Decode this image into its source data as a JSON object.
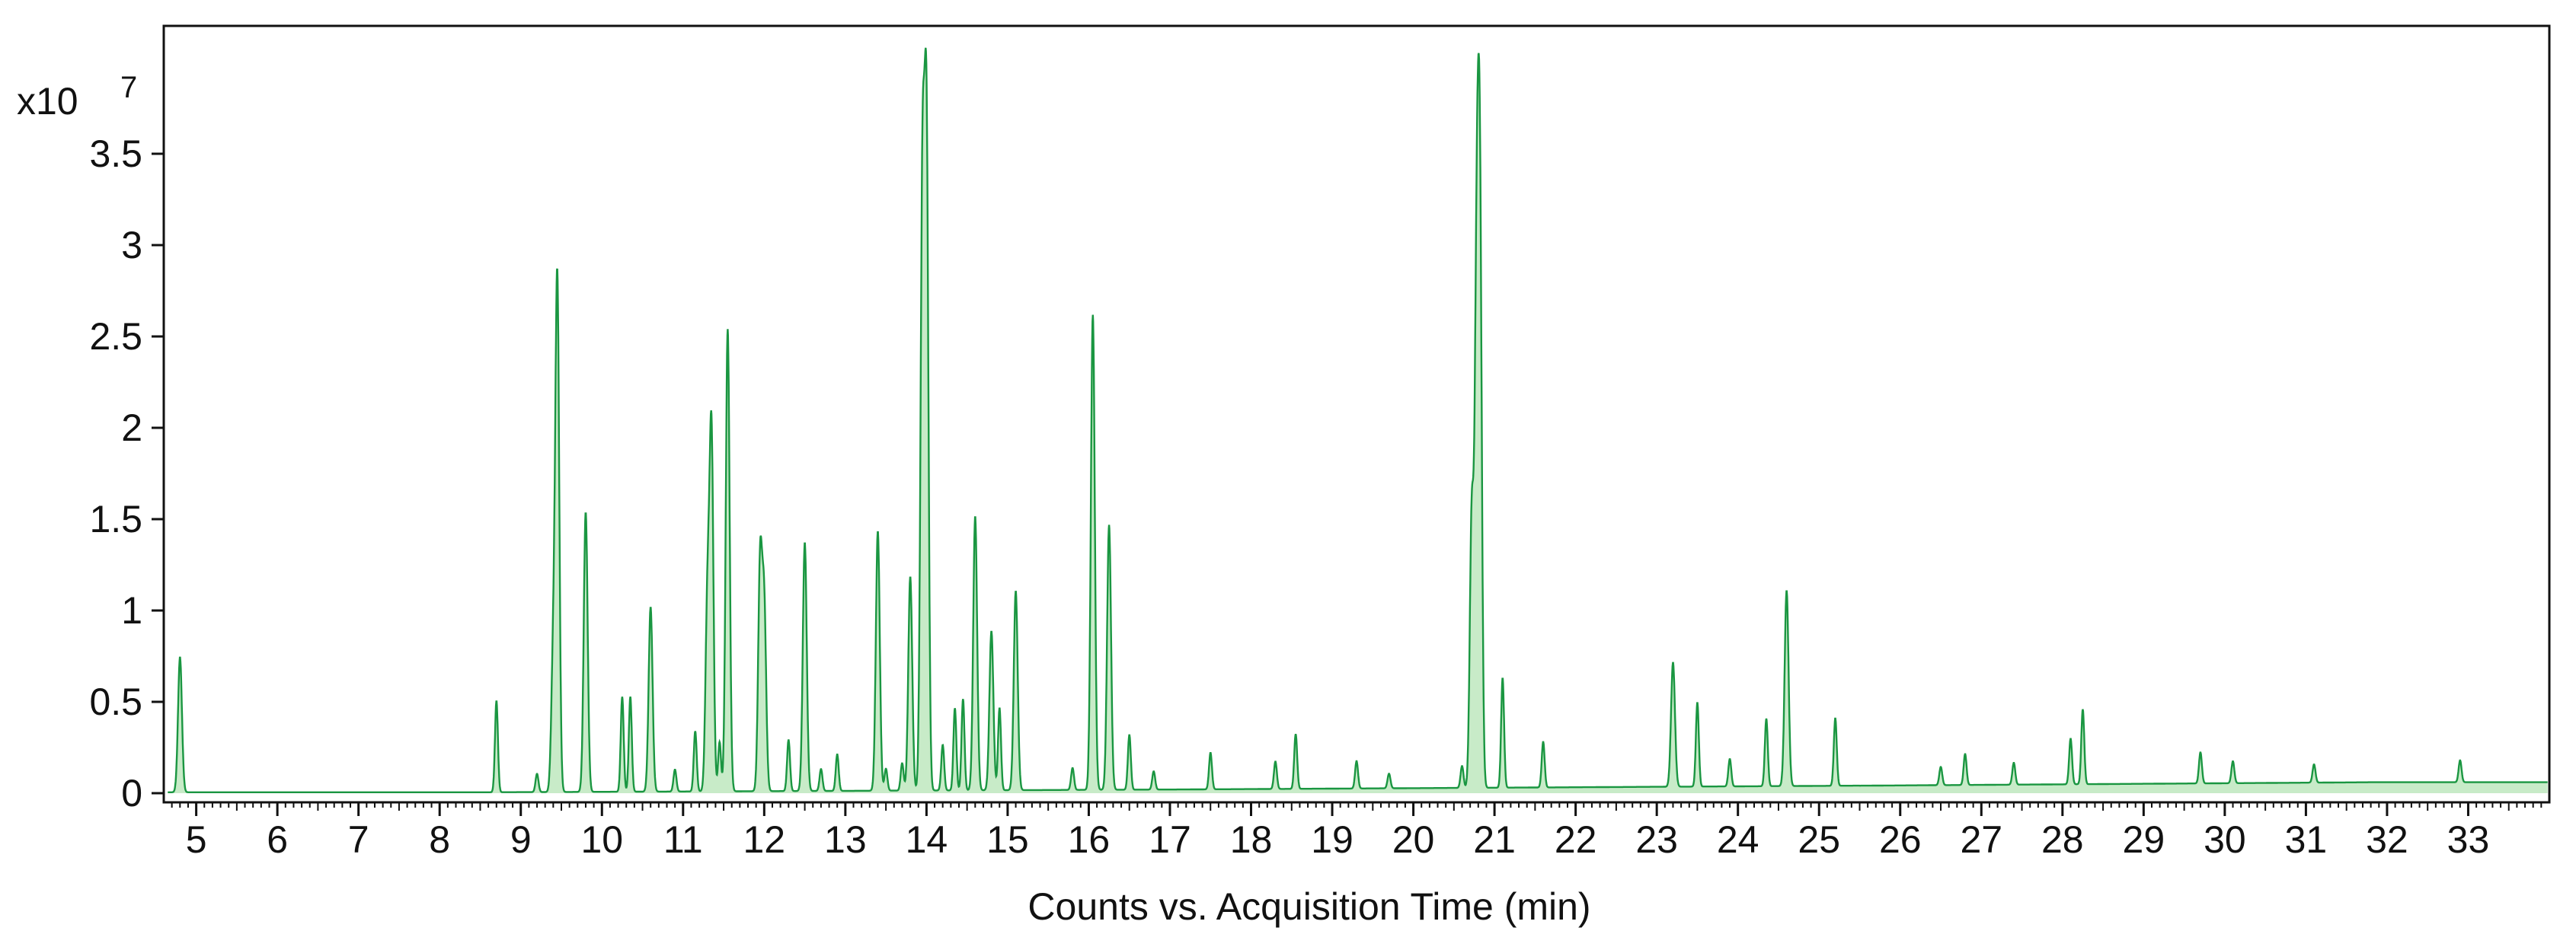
{
  "chart_data": {
    "type": "line",
    "title": "",
    "xlabel": "Counts vs. Acquisition Time (min)",
    "ylabel": "",
    "y_scale_base": "x10",
    "y_scale_exponent": "7",
    "xlim": [
      4.6,
      34.0
    ],
    "ylim": [
      -0.05,
      4.2
    ],
    "x_ticks": [
      5,
      6,
      7,
      8,
      9,
      10,
      11,
      12,
      13,
      14,
      15,
      16,
      17,
      18,
      19,
      20,
      21,
      22,
      23,
      24,
      25,
      26,
      27,
      28,
      29,
      30,
      31,
      32,
      33
    ],
    "y_ticks": [
      0,
      0.5,
      1,
      1.5,
      2,
      2.5,
      3,
      3.5
    ],
    "y_tick_labels": [
      "0",
      "0.5",
      "1",
      "1.5",
      "2",
      "2.5",
      "3",
      "3.5"
    ],
    "grid": false,
    "line_color": "#1a9641",
    "fill_color": "#c8ebc8",
    "peaks": [
      {
        "x": 4.8,
        "y": 0.74
      },
      {
        "x": 8.7,
        "y": 0.5
      },
      {
        "x": 9.2,
        "y": 0.1
      },
      {
        "x": 9.4,
        "y": 0.74
      },
      {
        "x": 9.45,
        "y": 2.78
      },
      {
        "x": 9.8,
        "y": 1.53
      },
      {
        "x": 10.25,
        "y": 0.52
      },
      {
        "x": 10.35,
        "y": 0.52
      },
      {
        "x": 10.6,
        "y": 1.01
      },
      {
        "x": 10.9,
        "y": 0.12
      },
      {
        "x": 11.15,
        "y": 0.33
      },
      {
        "x": 11.3,
        "y": 1.02
      },
      {
        "x": 11.35,
        "y": 1.95
      },
      {
        "x": 11.45,
        "y": 0.27
      },
      {
        "x": 11.55,
        "y": 2.53
      },
      {
        "x": 11.95,
        "y": 1.25
      },
      {
        "x": 12.0,
        "y": 1.0
      },
      {
        "x": 12.3,
        "y": 0.28
      },
      {
        "x": 12.5,
        "y": 1.36
      },
      {
        "x": 12.7,
        "y": 0.12
      },
      {
        "x": 12.9,
        "y": 0.2
      },
      {
        "x": 13.4,
        "y": 1.42
      },
      {
        "x": 13.5,
        "y": 0.12
      },
      {
        "x": 13.7,
        "y": 0.15
      },
      {
        "x": 13.8,
        "y": 1.17
      },
      {
        "x": 13.95,
        "y": 3.25
      },
      {
        "x": 14.0,
        "y": 3.55
      },
      {
        "x": 14.2,
        "y": 0.25
      },
      {
        "x": 14.35,
        "y": 0.45
      },
      {
        "x": 14.45,
        "y": 0.5
      },
      {
        "x": 14.6,
        "y": 1.5
      },
      {
        "x": 14.8,
        "y": 0.87
      },
      {
        "x": 14.9,
        "y": 0.45
      },
      {
        "x": 15.1,
        "y": 1.09
      },
      {
        "x": 15.8,
        "y": 0.12
      },
      {
        "x": 16.05,
        "y": 2.6
      },
      {
        "x": 16.25,
        "y": 1.45
      },
      {
        "x": 16.5,
        "y": 0.3
      },
      {
        "x": 16.8,
        "y": 0.1
      },
      {
        "x": 17.5,
        "y": 0.2
      },
      {
        "x": 18.3,
        "y": 0.15
      },
      {
        "x": 18.55,
        "y": 0.3
      },
      {
        "x": 19.3,
        "y": 0.15
      },
      {
        "x": 19.7,
        "y": 0.08
      },
      {
        "x": 20.6,
        "y": 0.12
      },
      {
        "x": 20.72,
        "y": 1.5
      },
      {
        "x": 20.78,
        "y": 2.6
      },
      {
        "x": 20.82,
        "y": 3.05
      },
      {
        "x": 21.1,
        "y": 0.6
      },
      {
        "x": 21.6,
        "y": 0.25
      },
      {
        "x": 23.2,
        "y": 0.68
      },
      {
        "x": 23.5,
        "y": 0.46
      },
      {
        "x": 23.9,
        "y": 0.15
      },
      {
        "x": 24.35,
        "y": 0.37
      },
      {
        "x": 24.6,
        "y": 1.07
      },
      {
        "x": 25.2,
        "y": 0.37
      },
      {
        "x": 26.5,
        "y": 0.1
      },
      {
        "x": 26.8,
        "y": 0.17
      },
      {
        "x": 27.4,
        "y": 0.12
      },
      {
        "x": 28.1,
        "y": 0.25
      },
      {
        "x": 28.25,
        "y": 0.41
      },
      {
        "x": 29.7,
        "y": 0.17
      },
      {
        "x": 30.1,
        "y": 0.12
      },
      {
        "x": 31.1,
        "y": 0.1
      },
      {
        "x": 32.9,
        "y": 0.12
      }
    ]
  }
}
